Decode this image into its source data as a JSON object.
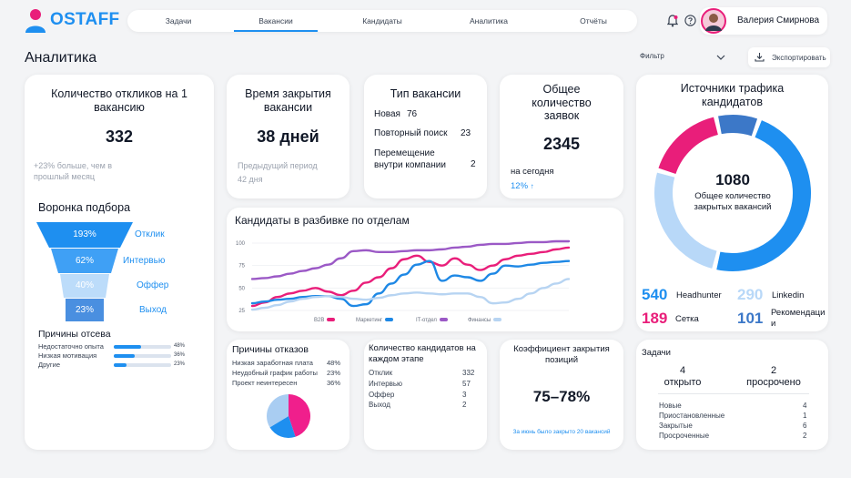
{
  "brand": {
    "name": "OSTAFF"
  },
  "nav": [
    {
      "label": "Задачи",
      "active": false
    },
    {
      "label": "Вакансии",
      "active": true
    },
    {
      "label": "Кандидаты",
      "active": false
    },
    {
      "label": "Аналитика",
      "active": false
    },
    {
      "label": "Отчёты",
      "active": false
    }
  ],
  "user": {
    "name": "Валерия Смирнова"
  },
  "page": {
    "title": "Аналитика",
    "filter_label": "Фильтр",
    "export_label": "Экспортировать"
  },
  "responses": {
    "title": "Количество откликов на 1 вакансию",
    "value": "332",
    "note": "+23% больше, чем в прошлый месяц"
  },
  "closing_time": {
    "title": "Время закрытия вакансии",
    "value": "38 дней",
    "prev_label": "Предыдущий период",
    "prev_value": "42 дня"
  },
  "vacancy_type": {
    "title": "Тип вакансии",
    "rows": [
      {
        "label": "Новая",
        "value": "76"
      },
      {
        "label": "Повторный поиск",
        "value": "23"
      },
      {
        "label": "Перемещение внутри компании",
        "value": "2"
      }
    ]
  },
  "total_requests": {
    "title": "Общее количество заявок",
    "value": "2345",
    "today_label": "на сегодня",
    "delta": "12%"
  },
  "funnel": {
    "title": "Воронка подбора",
    "stages": [
      {
        "label": "Отклик",
        "value": "193%"
      },
      {
        "label": "Интервью",
        "value": "62%"
      },
      {
        "label": "Оффер",
        "value": "40%"
      },
      {
        "label": "Выход",
        "value": "23%"
      }
    ],
    "colors": [
      "#1e8ff0",
      "#3fa0f5",
      "#bcdcfa",
      "#4a8fe0"
    ]
  },
  "dropout": {
    "title": "Причины отсева",
    "rows": [
      {
        "label": "Недостаточно опыта",
        "value": "48%",
        "fraction": 0.48
      },
      {
        "label": "Низкая мотивация",
        "value": "36%",
        "fraction": 0.36
      },
      {
        "label": "Другие",
        "value": "23%",
        "fraction": 0.23
      }
    ]
  },
  "dept_chart": {
    "title": "Кандидаты в разбивке по отделам",
    "chart_data": {
      "type": "line",
      "x": [
        0,
        1,
        2,
        3,
        4,
        5,
        6,
        7,
        8,
        9,
        10,
        11,
        12,
        13,
        14,
        15,
        16,
        17,
        18,
        19,
        20,
        21,
        22,
        23,
        24,
        25
      ],
      "yticks": [
        25,
        50,
        75,
        100
      ],
      "ylim": [
        22,
        103
      ],
      "series": [
        {
          "name": "B2B",
          "color": "#e91e7a",
          "values": [
            30,
            34,
            40,
            44,
            47,
            50,
            46,
            42,
            47,
            56,
            62,
            72,
            82,
            86,
            79,
            75,
            83,
            76,
            70,
            75,
            82,
            86,
            88,
            90,
            93,
            95
          ]
        },
        {
          "name": "Маркетинг",
          "color": "#1e88e5",
          "values": [
            33,
            35,
            37,
            38,
            40,
            41,
            41,
            38,
            30,
            32,
            44,
            55,
            65,
            76,
            80,
            58,
            64,
            62,
            58,
            66,
            75,
            74,
            76,
            78,
            79,
            80
          ]
        },
        {
          "name": "IT-отдел",
          "color": "#9b59c6",
          "values": [
            60,
            61,
            63,
            66,
            69,
            72,
            76,
            83,
            91,
            92,
            90,
            90,
            91,
            92,
            92,
            93,
            95,
            96,
            98,
            99,
            99,
            100,
            101,
            101,
            102,
            102
          ]
        },
        {
          "name": "Финансы",
          "color": "#b7d4f2",
          "values": [
            26,
            28,
            31,
            35,
            38,
            40,
            41,
            40,
            38,
            37,
            39,
            42,
            44,
            45,
            44,
            43,
            44,
            44,
            40,
            33,
            34,
            38,
            44,
            50,
            55,
            60
          ]
        }
      ]
    }
  },
  "traffic": {
    "title": "Источники трафика кандидатов",
    "center_value": "1080",
    "center_label": "Общее количество закрытых вакансий",
    "chart_data": {
      "type": "pie",
      "labels": [
        "Headhunter",
        "Linkedin",
        "Сетка",
        "Рекомендации"
      ],
      "values": [
        540,
        290,
        189,
        101
      ],
      "colors": [
        "#1e8ff0",
        "#b8d8f8",
        "#e91e7a",
        "#3c78c8"
      ]
    },
    "stats": [
      {
        "value": "540",
        "label": "Headhunter",
        "color": "#1e8ff0"
      },
      {
        "value": "290",
        "label": "Linkedin",
        "color": "#b8d8f8"
      },
      {
        "value": "189",
        "label": "Сетка",
        "color": "#e91e7a"
      },
      {
        "value": "101",
        "label": "Рекомендации",
        "color": "#3c78c8"
      }
    ]
  },
  "rejections": {
    "title": "Причины отказов",
    "rows": [
      {
        "label": "Низкая заработная плата",
        "value": "48%"
      },
      {
        "label": "Неудобный график работы",
        "value": "23%"
      },
      {
        "label": "Проект неинтересен",
        "value": "36%"
      }
    ],
    "chart_data": {
      "type": "pie",
      "labels": [
        "Низкая заработная плата",
        "Неудобный график работы",
        "Проект неинтересен"
      ],
      "values": [
        48,
        23,
        36
      ],
      "colors": [
        "#f01f8c",
        "#1e8ff0",
        "#a9cdf2"
      ]
    }
  },
  "stages": {
    "title": "Количество кандидатов на каждом этапе",
    "rows": [
      {
        "label": "Отклик",
        "value": "332"
      },
      {
        "label": "Интервью",
        "value": "57"
      },
      {
        "label": "Оффер",
        "value": "3"
      },
      {
        "label": "Выход",
        "value": "2"
      }
    ]
  },
  "coefficient": {
    "title": "Коэффициент закрытия позиций",
    "value": "75–78%",
    "note": "За июнь было закрыто 20 вакансий"
  },
  "tasks": {
    "title": "Задачи",
    "open_value": "4",
    "open_label": "открыто",
    "overdue_value": "2",
    "overdue_label": "просрочено",
    "rows": [
      {
        "label": "Новые",
        "value": "4"
      },
      {
        "label": "Приостановленные",
        "value": "1"
      },
      {
        "label": "Закрытые",
        "value": "6"
      },
      {
        "label": "Просроченные",
        "value": "2"
      }
    ]
  },
  "colors": {
    "accent": "#1e8ff0",
    "pink": "#e91e7a",
    "purple": "#9b59c6"
  }
}
